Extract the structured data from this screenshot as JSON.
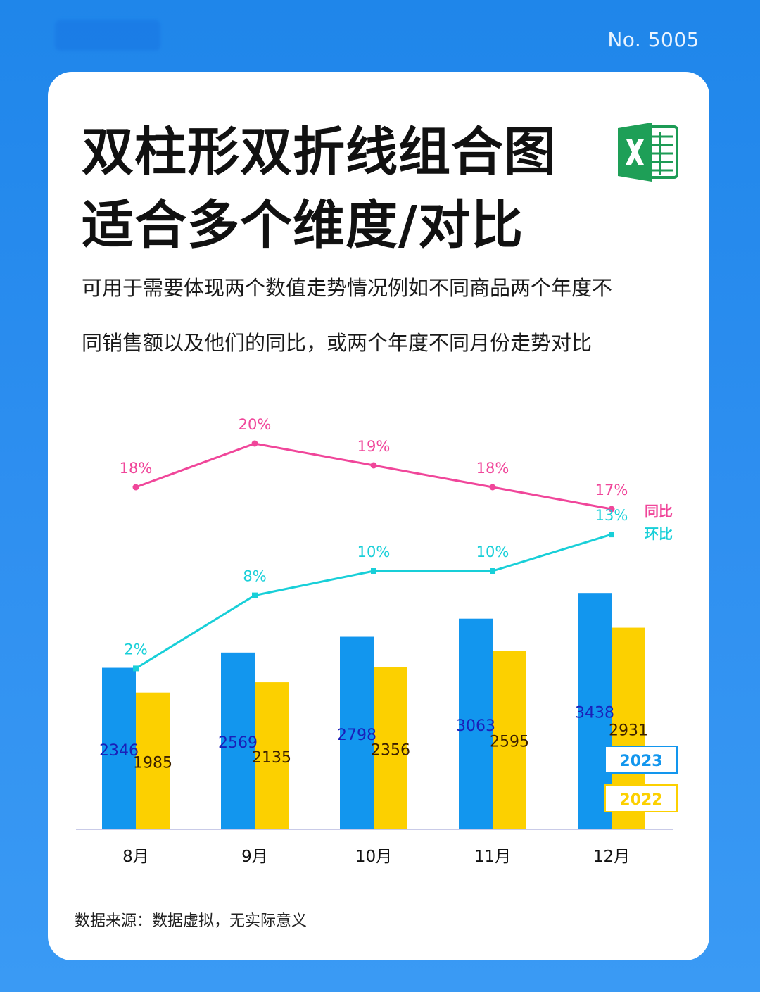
{
  "header": {
    "number": "No. 5005"
  },
  "card": {
    "title_line1": "双柱形双折线组合图",
    "title_line2": "适合多个维度/对比",
    "desc_line1": "可用于需要体现两个数值走势情况例如不同商品两个年度不",
    "desc_line2": "同销售额以及他们的同比，或两个年度不同月份走势对比",
    "source": "数据来源：数据虚拟，无实际意义",
    "icon": "excel-icon"
  },
  "colors": {
    "background": "#2a8bee",
    "bar_2023": "#1296ee",
    "bar_2022": "#fcd000",
    "line_yoy": "#f0469a",
    "line_mom": "#18cfd8",
    "label_2023": "#1a1fb8",
    "label_2022": "#3a1f00"
  },
  "chart_data": {
    "type": "bar",
    "categories": [
      "8月",
      "9月",
      "10月",
      "11月",
      "12月"
    ],
    "ylim": [
      0,
      4000
    ],
    "series": [
      {
        "name": "2023",
        "type": "bar",
        "values": [
          2346,
          2569,
          2798,
          3063,
          3438
        ]
      },
      {
        "name": "2022",
        "type": "bar",
        "values": [
          1985,
          2135,
          2356,
          2595,
          2931
        ]
      },
      {
        "name": "同比",
        "type": "line",
        "values": [
          18,
          20,
          19,
          18,
          17
        ],
        "unit": "%"
      },
      {
        "name": "环比",
        "type": "line",
        "values": [
          2,
          8,
          10,
          10,
          13
        ],
        "unit": "%"
      }
    ],
    "legend_position": "right",
    "grid": false
  }
}
